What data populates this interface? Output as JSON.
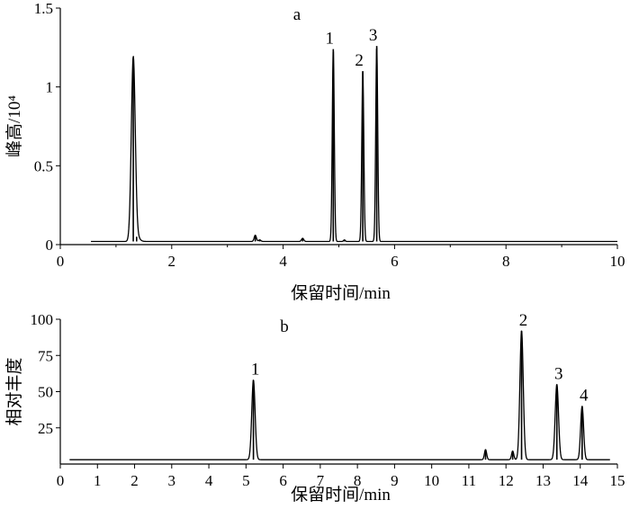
{
  "chart_data": [
    {
      "type": "line",
      "panel_label": "a",
      "xlabel": "保留时间/min",
      "ylabel": "峰高/10⁴",
      "xlim": [
        0,
        10
      ],
      "ylim": [
        0,
        1.5
      ],
      "x_ticks": [
        0,
        2,
        4,
        6,
        8,
        10
      ],
      "y_ticks": [
        0,
        0.5,
        1,
        1.5
      ],
      "y_tick_labels": [
        "0",
        "0.5",
        "1",
        "1.5"
      ],
      "baseline": 0.02,
      "trace_range": [
        0.55,
        10
      ],
      "peaks": [
        {
          "x": 1.31,
          "y": 1.18,
          "width": 0.035,
          "label": ""
        },
        {
          "x": 1.37,
          "y": 0.05,
          "width": 0.05,
          "label": ""
        },
        {
          "x": 3.5,
          "y": 0.06,
          "width": 0.02,
          "label": ""
        },
        {
          "x": 3.58,
          "y": 0.03,
          "width": 0.02,
          "label": ""
        },
        {
          "x": 4.35,
          "y": 0.04,
          "width": 0.02,
          "label": ""
        },
        {
          "x": 5.1,
          "y": 0.03,
          "width": 0.015,
          "label": ""
        },
        {
          "x": 4.9,
          "y": 1.24,
          "width": 0.018,
          "label": "1"
        },
        {
          "x": 5.43,
          "y": 1.1,
          "width": 0.018,
          "label": "2"
        },
        {
          "x": 5.68,
          "y": 1.26,
          "width": 0.018,
          "label": "3"
        }
      ]
    },
    {
      "type": "line",
      "panel_label": "b",
      "xlabel": "保留时间/min",
      "ylabel": "相对丰度",
      "xlim": [
        0,
        15
      ],
      "ylim": [
        0,
        100
      ],
      "x_ticks": [
        0,
        1,
        2,
        3,
        4,
        5,
        6,
        7,
        8,
        9,
        10,
        11,
        12,
        13,
        14,
        15
      ],
      "y_ticks": [
        25,
        50,
        75,
        100
      ],
      "y_tick_labels": [
        "25",
        "50",
        "75",
        "100"
      ],
      "baseline": 3,
      "trace_range": [
        0.25,
        14.8
      ],
      "peaks": [
        {
          "x": 5.2,
          "y": 58,
          "width": 0.045,
          "label": "1"
        },
        {
          "x": 11.45,
          "y": 10,
          "width": 0.03,
          "label": ""
        },
        {
          "x": 12.18,
          "y": 9,
          "width": 0.03,
          "label": ""
        },
        {
          "x": 12.42,
          "y": 92,
          "width": 0.045,
          "label": "2"
        },
        {
          "x": 13.37,
          "y": 55,
          "width": 0.045,
          "label": "3"
        },
        {
          "x": 14.05,
          "y": 40,
          "width": 0.04,
          "label": "4"
        }
      ]
    }
  ]
}
